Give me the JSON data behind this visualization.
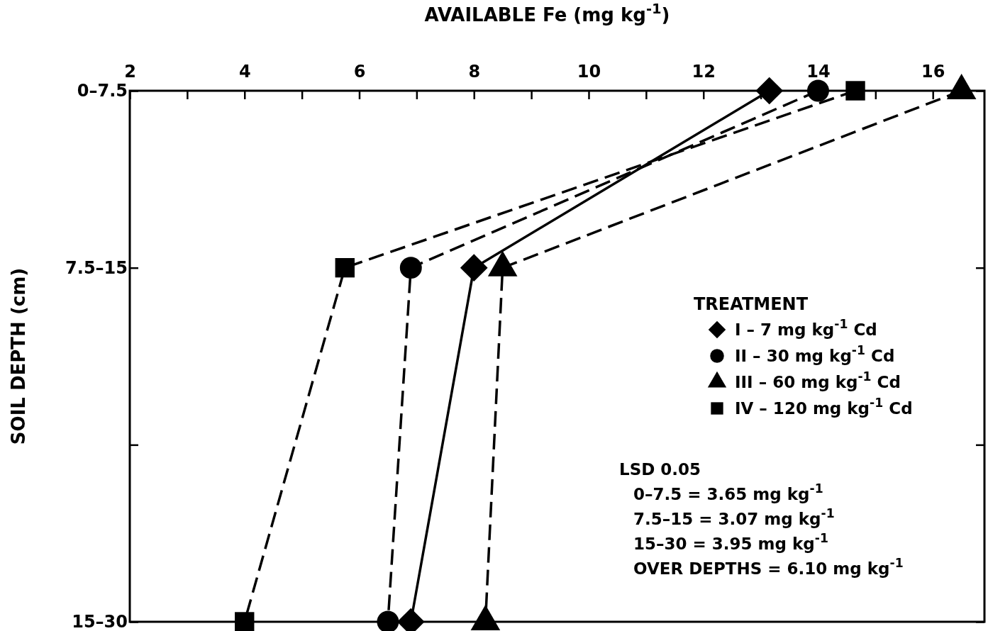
{
  "chart_data": {
    "type": "line",
    "orientation": "horizontal",
    "xlabel": "AVAILABLE Fe (mg kg$^{-1}$)",
    "ylabel": "SOIL DEPTH (cm)",
    "categories": [
      "0–7.5",
      "7.5–15",
      null,
      "15–30"
    ],
    "xlim": [
      2,
      16.9
    ],
    "xticks": [
      2,
      {
        "value": 3,
        "label": null
      },
      4,
      {
        "value": 5,
        "label": null
      },
      6,
      {
        "value": 7,
        "label": null
      },
      8,
      {
        "value": 9,
        "label": null
      },
      10,
      {
        "value": 11,
        "label": null
      },
      12,
      {
        "value": 13,
        "label": null
      },
      14,
      {
        "value": 15,
        "label": null
      },
      16
    ],
    "legend_title": "TREATMENT",
    "legend": "right",
    "series": [
      {
        "name": "I – 7 mg kg$^{-1}$ Cd",
        "color": "#000000",
        "marker": "diamond",
        "line_style": "solid",
        "values": [
          13.15,
          8.0,
          null,
          6.9
        ]
      },
      {
        "name": "II – 30 mg kg$^{-1}$ Cd",
        "color": "#000000",
        "marker": "circle",
        "line_style": "dashed",
        "values": [
          14.0,
          6.9,
          null,
          6.5
        ]
      },
      {
        "name": "III – 60 mg kg$^{-1}$ Cd",
        "color": "#000000",
        "marker": "triangle",
        "line_style": "dashed",
        "values": [
          16.5,
          8.5,
          null,
          8.2
        ]
      },
      {
        "name": "IV – 120 mg kg$^{-1}$ Cd",
        "color": "#000000",
        "marker": "square",
        "line_style": "dashed",
        "values": [
          14.65,
          5.75,
          null,
          4.0
        ]
      }
    ],
    "annotations": [
      "LSD 0.05",
      "0–7.5 = 3.65 mg kg$^{-1}$",
      "7.5–15 = 3.07 mg kg$^{-1}$",
      "15–30 = 3.95 mg kg$^{-1}$",
      "OVER DEPTHS = 6.10 mg kg$^{-1}$"
    ]
  }
}
